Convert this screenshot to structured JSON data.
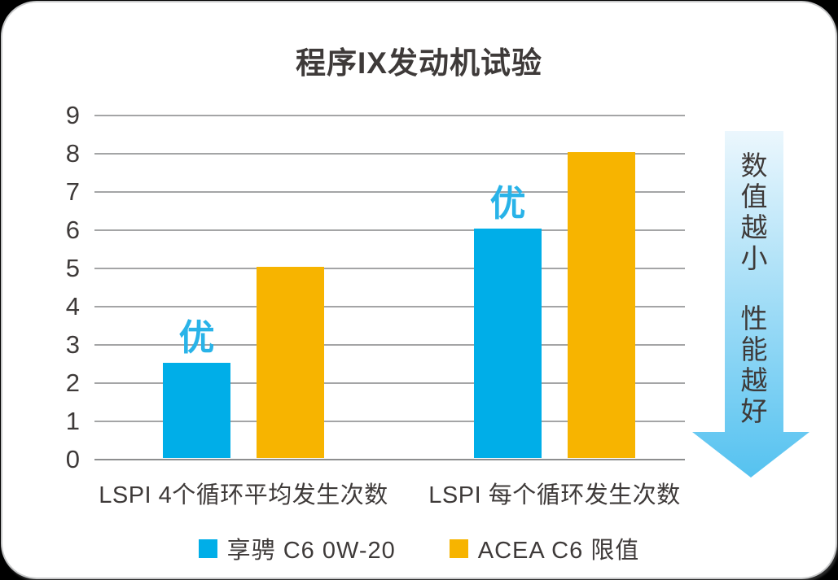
{
  "title": "程序IX发动机试验",
  "side_arrow": {
    "lines": [
      "数值越小",
      "性能越好"
    ],
    "gradient_top": "#ecf7fd",
    "gradient_bottom": "#55c2f0"
  },
  "colors": {
    "series_blue": "#00aee8",
    "series_yellow": "#f7b400",
    "annotation_cyan": "#29b3e8",
    "text_dark": "#3e3a39",
    "gridline": "#a4a5a6"
  },
  "chart_data": {
    "type": "bar",
    "title": "程序IX发动机试验",
    "categories": [
      "LSPI 4个循环平均发生次数",
      "LSPI 每个循环发生次数"
    ],
    "series": [
      {
        "name": "享骋 C6  0W-20",
        "color": "#00aee8",
        "values": [
          2.5,
          6
        ],
        "annotated": true
      },
      {
        "name": "ACEA  C6 限值",
        "color": "#f7b400",
        "values": [
          5,
          8
        ],
        "annotated": false
      }
    ],
    "annotation_text": "优",
    "xlabel": "",
    "ylabel": "",
    "ylim": [
      0,
      9
    ],
    "yticks": [
      0,
      1,
      2,
      3,
      4,
      5,
      6,
      7,
      8,
      9
    ],
    "grid": true,
    "legend_position": "bottom",
    "notes": "数值越小 性能越好 (smaller value = better performance), downward arrow on right side"
  }
}
